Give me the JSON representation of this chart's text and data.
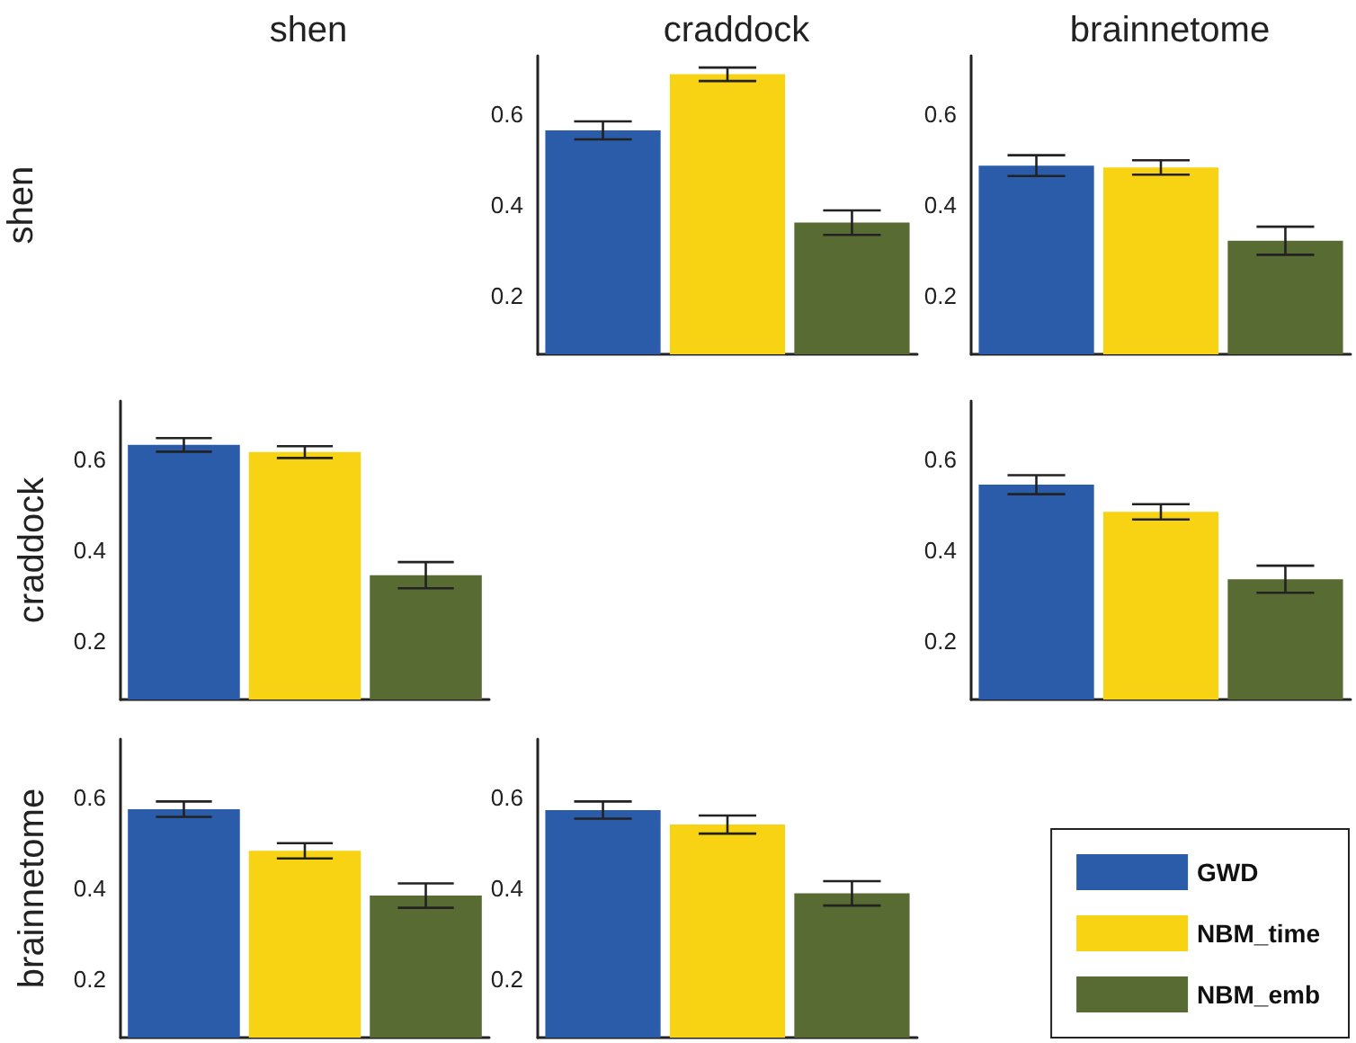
{
  "chart_data": [
    {
      "type": "bar",
      "title": "craddock",
      "ylabel": "shen",
      "categories": [
        null
      ],
      "ylim": [
        0.07,
        0.73
      ],
      "yticks": [
        0.2,
        0.4,
        0.6
      ],
      "grid": false,
      "series": [
        {
          "color": "#2a5caa",
          "values": [
            0.565
          ],
          "errors": [
            0.02
          ]
        },
        {
          "color": "#f8d313",
          "values": [
            0.689
          ],
          "errors": [
            0.015
          ]
        },
        {
          "color": "#586b32",
          "values": [
            0.361
          ],
          "errors": [
            0.027
          ]
        }
      ]
    },
    {
      "type": "bar",
      "title": "brainnetome",
      "categories": [
        null
      ],
      "ylim": [
        0.07,
        0.73
      ],
      "yticks": [
        0.2,
        0.4,
        0.6
      ],
      "grid": false,
      "series": [
        {
          "color": "#2a5caa",
          "values": [
            0.487
          ],
          "errors": [
            0.023
          ]
        },
        {
          "color": "#f8d313",
          "values": [
            0.483
          ],
          "errors": [
            0.016
          ]
        },
        {
          "color": "#586b32",
          "values": [
            0.321
          ],
          "errors": [
            0.031
          ]
        }
      ]
    },
    {
      "type": "bar",
      "title": "shen",
      "ylabel": "craddock",
      "categories": [
        null
      ],
      "ylim": [
        0.07,
        0.73
      ],
      "yticks": [
        0.2,
        0.4,
        0.6
      ],
      "grid": false,
      "series": [
        {
          "color": "#2a5caa",
          "values": [
            0.633
          ],
          "errors": [
            0.015
          ]
        },
        {
          "color": "#f8d313",
          "values": [
            0.617
          ],
          "errors": [
            0.013
          ]
        },
        {
          "color": "#586b32",
          "values": [
            0.345
          ],
          "errors": [
            0.029
          ]
        }
      ]
    },
    {
      "type": "bar",
      "categories": [
        null
      ],
      "ylim": [
        0.07,
        0.73
      ],
      "yticks": [
        0.2,
        0.4,
        0.6
      ],
      "grid": false,
      "series": [
        {
          "color": "#2a5caa",
          "values": [
            0.545
          ],
          "errors": [
            0.021
          ]
        },
        {
          "color": "#f8d313",
          "values": [
            0.485
          ],
          "errors": [
            0.017
          ]
        },
        {
          "color": "#586b32",
          "values": [
            0.336
          ],
          "errors": [
            0.03
          ]
        }
      ]
    },
    {
      "type": "bar",
      "ylabel": "brainnetome",
      "categories": [
        null
      ],
      "ylim": [
        0.07,
        0.73
      ],
      "yticks": [
        0.2,
        0.4,
        0.6
      ],
      "grid": false,
      "series": [
        {
          "color": "#2a5caa",
          "values": [
            0.575
          ],
          "errors": [
            0.017
          ]
        },
        {
          "color": "#f8d313",
          "values": [
            0.483
          ],
          "errors": [
            0.017
          ]
        },
        {
          "color": "#586b32",
          "values": [
            0.384
          ],
          "errors": [
            0.027
          ]
        }
      ]
    },
    {
      "type": "bar",
      "categories": [
        null
      ],
      "ylim": [
        0.07,
        0.73
      ],
      "yticks": [
        0.2,
        0.4,
        0.6
      ],
      "grid": false,
      "legend": "bottom right",
      "series": [
        {
          "name": "GWD",
          "color": "#2a5caa",
          "values": [
            0.573
          ],
          "errors": [
            0.019
          ]
        },
        {
          "name": "NBM_time",
          "color": "#f8d313",
          "values": [
            0.541
          ],
          "errors": [
            0.02
          ]
        },
        {
          "name": "NBM_emb",
          "color": "#586b32",
          "values": [
            0.389
          ],
          "errors": [
            0.027
          ]
        }
      ]
    }
  ]
}
